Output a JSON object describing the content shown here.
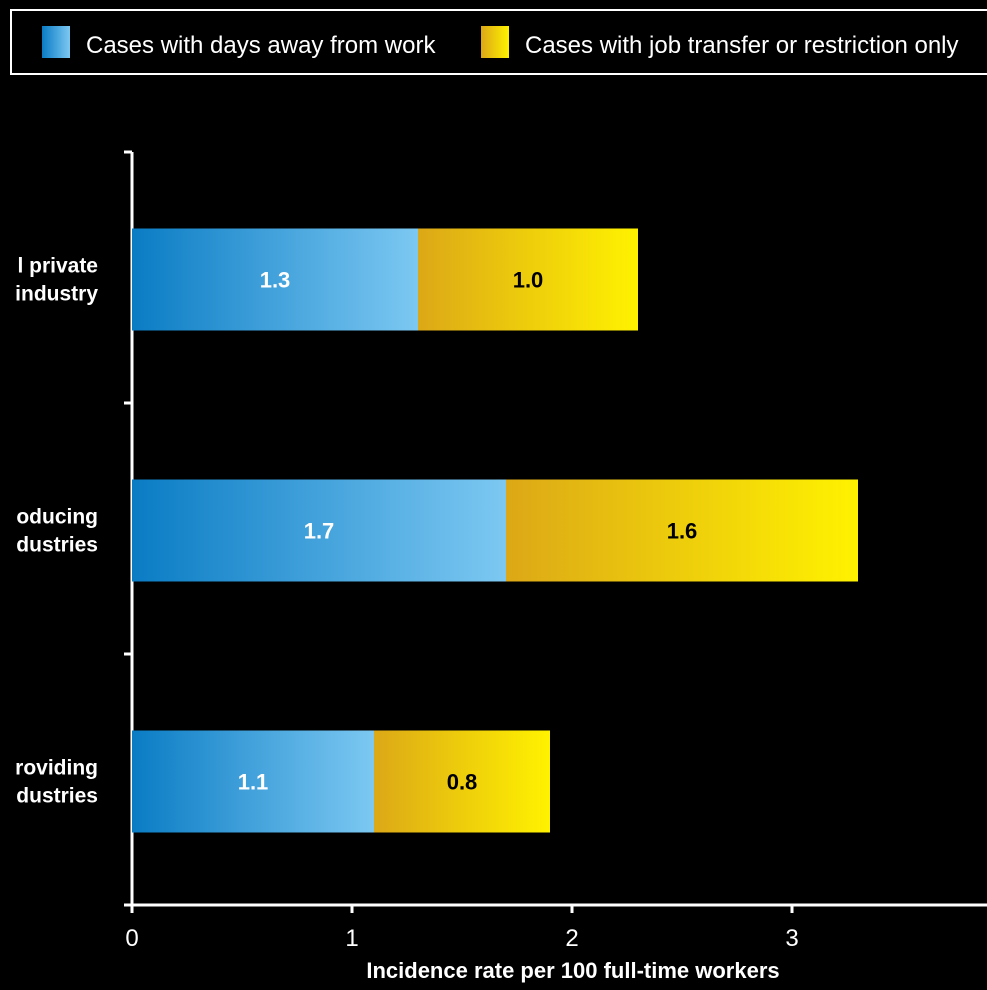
{
  "chart_data": {
    "type": "bar",
    "orientation": "horizontal",
    "stacked": true,
    "categories": [
      "Total private industry",
      "Goods-producing industries",
      "Service-providing industries"
    ],
    "category_labels_visible": [
      [
        "l private",
        "industry"
      ],
      [
        "oducing",
        "dustries"
      ],
      [
        "roviding",
        "dustries"
      ]
    ],
    "series": [
      {
        "name": "Cases with days away from work",
        "values": [
          1.3,
          1.7,
          1.1
        ],
        "value_labels": [
          "1.3",
          "1.7",
          "1.1"
        ]
      },
      {
        "name": "Cases with job transfer or restriction only",
        "values": [
          1.0,
          1.6,
          0.8
        ],
        "value_labels": [
          "1.0",
          "1.6",
          "0.8"
        ]
      }
    ],
    "xlabel": "Incidence rate per 100 full-time workers",
    "ylabel": "",
    "xlim": [
      0,
      3.9
    ],
    "xticks": [
      0,
      1,
      2,
      3
    ],
    "xtick_labels": [
      "0",
      "1",
      "2",
      "3"
    ],
    "grid": false,
    "legend_position": "top",
    "colors": {
      "background": "#000000",
      "axis": "#ffffff",
      "text": "#ffffff",
      "series1_start": "#0a7cc4",
      "series1_end": "#7cc8f2",
      "series2_start": "#dca817",
      "series2_end": "#fff200",
      "series1_label": "#ffffff",
      "series2_label": "#000000"
    }
  }
}
